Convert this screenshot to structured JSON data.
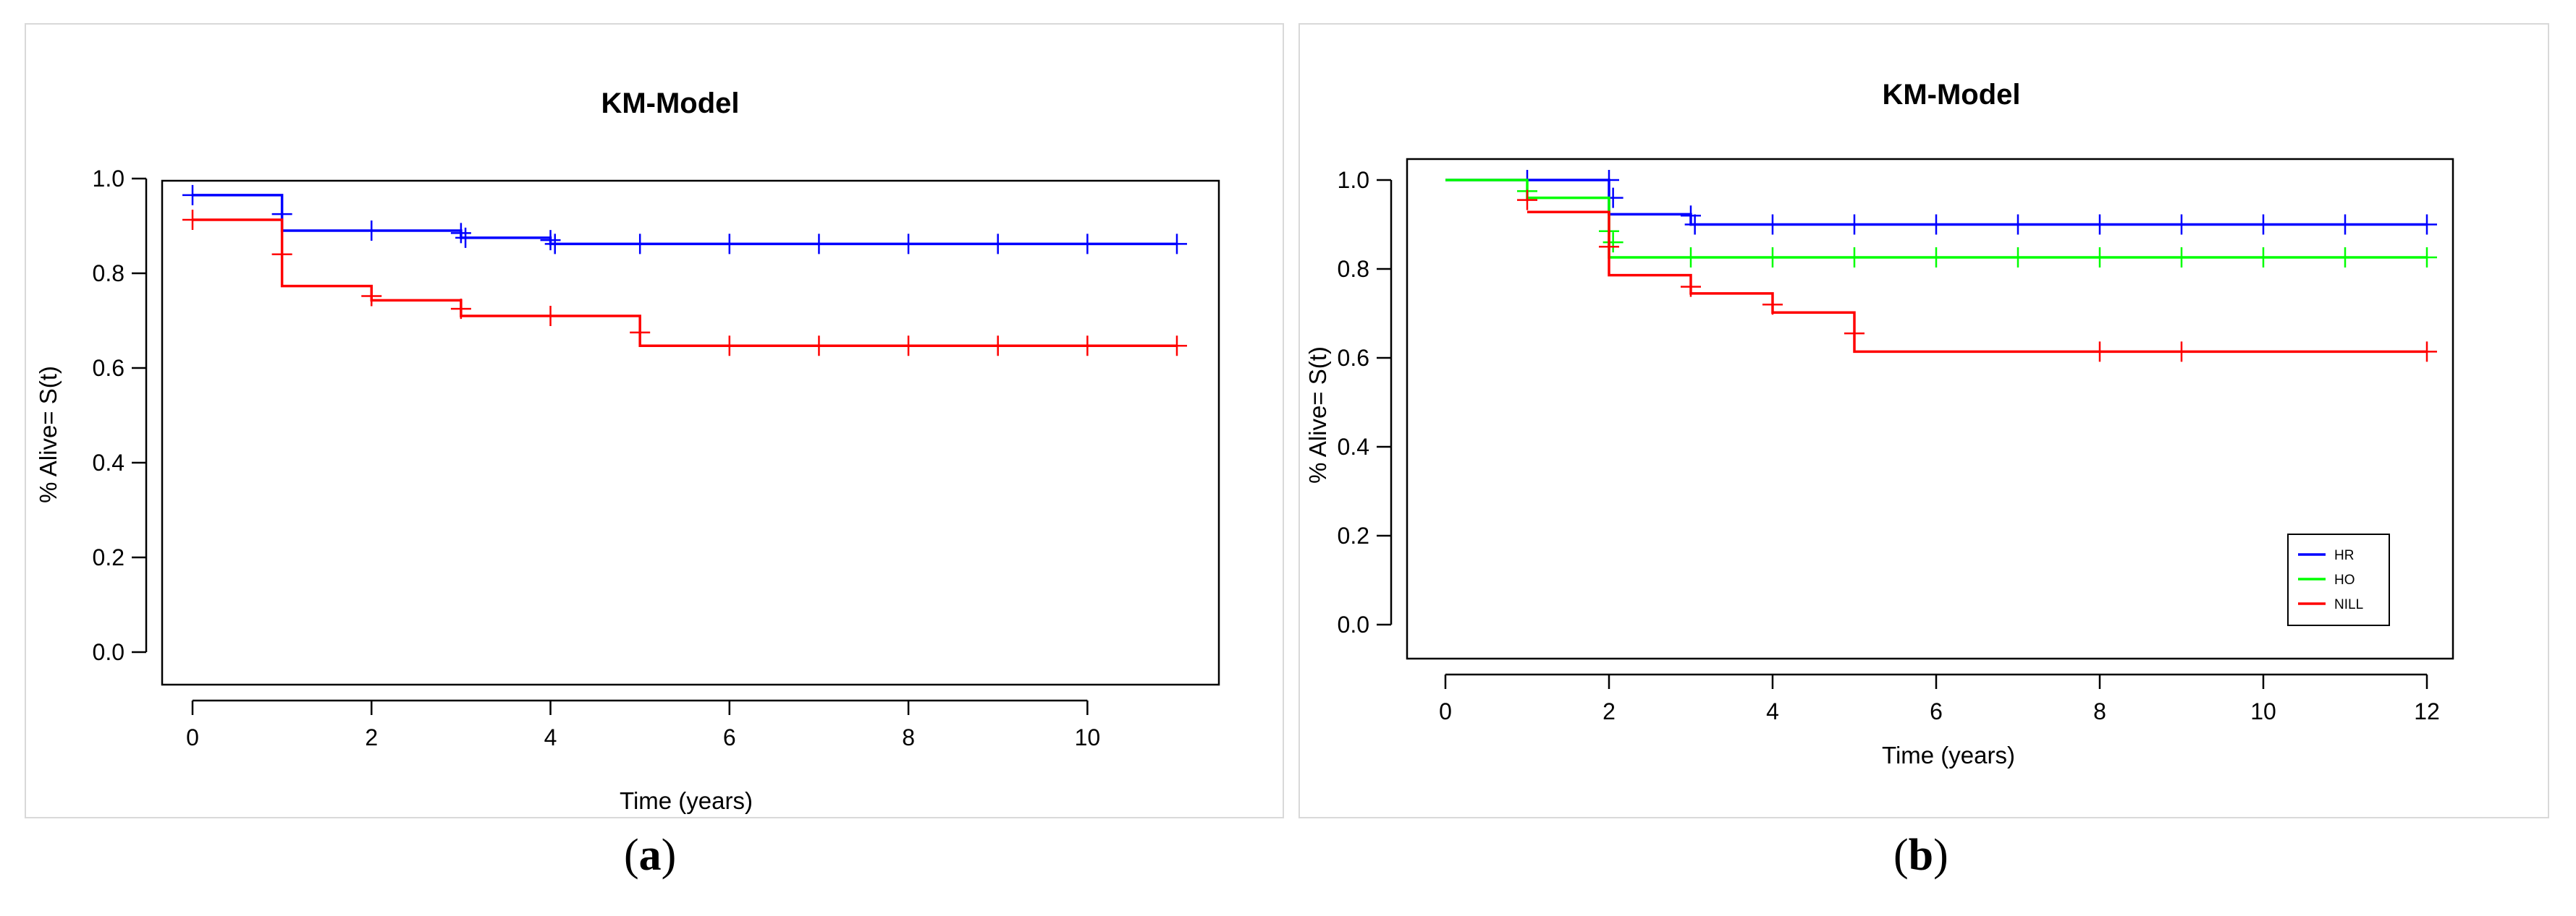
{
  "colors": {
    "HR": "#0000ff",
    "HO": "#00ff00",
    "NILL": "#ff0000",
    "axis": "#000000"
  },
  "subfigures": [
    {
      "label_open": "(",
      "label_letter": "a",
      "label_close": ")"
    },
    {
      "label_open": "(",
      "label_letter": "b",
      "label_close": ")"
    }
  ],
  "chart_data": [
    {
      "type": "line",
      "subtype": "kaplan-meier step",
      "title": "KM-Model",
      "xlabel": "Time (years)",
      "ylabel": "% Alive= S(t)",
      "xlim": [
        0,
        11
      ],
      "ylim": [
        0.0,
        1.0
      ],
      "xticks": [
        "0",
        "2",
        "4",
        "6",
        "8",
        "10"
      ],
      "yticks": [
        "0.0",
        "0.2",
        "0.4",
        "0.6",
        "0.8",
        "1.0"
      ],
      "legend": null,
      "series": [
        {
          "name": "blue",
          "color": "#0000ff",
          "steps": [
            [
              0,
              0.965
            ],
            [
              1,
              0.89
            ],
            [
              3,
              0.875
            ],
            [
              4,
              0.862
            ],
            [
              11,
              0.862
            ]
          ],
          "censor": [
            [
              0,
              0.965
            ],
            [
              1,
              0.925
            ],
            [
              2,
              0.89
            ],
            [
              3,
              0.885
            ],
            [
              3.05,
              0.875
            ],
            [
              4,
              0.87
            ],
            [
              4.05,
              0.862
            ],
            [
              5,
              0.862
            ],
            [
              6,
              0.862
            ],
            [
              7,
              0.862
            ],
            [
              8,
              0.862
            ],
            [
              9,
              0.862
            ],
            [
              10,
              0.862
            ],
            [
              11,
              0.862
            ]
          ]
        },
        {
          "name": "red",
          "color": "#ff0000",
          "steps": [
            [
              0,
              0.913
            ],
            [
              1,
              0.773
            ],
            [
              2,
              0.743
            ],
            [
              3,
              0.71
            ],
            [
              5,
              0.647
            ],
            [
              11,
              0.647
            ]
          ],
          "censor": [
            [
              0,
              0.913
            ],
            [
              1,
              0.84
            ],
            [
              2,
              0.752
            ],
            [
              3,
              0.725
            ],
            [
              4,
              0.71
            ],
            [
              5,
              0.675
            ],
            [
              6,
              0.647
            ],
            [
              7,
              0.647
            ],
            [
              8,
              0.647
            ],
            [
              9,
              0.647
            ],
            [
              10,
              0.647
            ],
            [
              11,
              0.647
            ]
          ]
        }
      ]
    },
    {
      "type": "line",
      "subtype": "kaplan-meier step",
      "title": "KM-Model",
      "xlabel": "Time (years)",
      "ylabel": "% Alive= S(t)",
      "xlim": [
        0,
        12
      ],
      "ylim": [
        0.0,
        1.0
      ],
      "xticks": [
        "0",
        "2",
        "4",
        "6",
        "8",
        "10",
        "12"
      ],
      "yticks": [
        "0.0",
        "0.2",
        "0.4",
        "0.6",
        "0.8",
        "1.0"
      ],
      "legend": {
        "position": "bottom-right",
        "entries": [
          "HR",
          "HO",
          "NILL"
        ]
      },
      "series": [
        {
          "name": "HR",
          "color": "#0000ff",
          "steps": [
            [
              0,
              1.0
            ],
            [
              2,
              0.923
            ],
            [
              3,
              0.9
            ],
            [
              12,
              0.9
            ]
          ],
          "censor": [
            [
              1,
              1.0
            ],
            [
              2,
              1.0
            ],
            [
              2.05,
              0.96
            ],
            [
              3,
              0.92
            ],
            [
              3.05,
              0.9
            ],
            [
              4,
              0.9
            ],
            [
              5,
              0.9
            ],
            [
              6,
              0.9
            ],
            [
              7,
              0.9
            ],
            [
              8,
              0.9
            ],
            [
              9,
              0.9
            ],
            [
              10,
              0.9
            ],
            [
              11,
              0.9
            ],
            [
              12,
              0.9
            ]
          ]
        },
        {
          "name": "HO",
          "color": "#00ff00",
          "steps": [
            [
              0,
              1.0
            ],
            [
              1,
              0.96
            ],
            [
              2,
              0.826
            ],
            [
              12,
              0.826
            ]
          ],
          "censor": [
            [
              1,
              0.975
            ],
            [
              2,
              0.885
            ],
            [
              2.05,
              0.86
            ],
            [
              3,
              0.826
            ],
            [
              4,
              0.826
            ],
            [
              5,
              0.826
            ],
            [
              6,
              0.826
            ],
            [
              7,
              0.826
            ],
            [
              8,
              0.826
            ],
            [
              9,
              0.826
            ],
            [
              10,
              0.826
            ],
            [
              11,
              0.826
            ],
            [
              12,
              0.826
            ]
          ]
        },
        {
          "name": "NILL",
          "color": "#ff0000",
          "steps": [
            [
              1,
              0.928
            ],
            [
              2,
              0.786
            ],
            [
              3,
              0.745
            ],
            [
              4,
              0.702
            ],
            [
              5,
              0.614
            ],
            [
              12,
              0.614
            ]
          ],
          "censor": [
            [
              1,
              0.955
            ],
            [
              2,
              0.85
            ],
            [
              3,
              0.76
            ],
            [
              4,
              0.72
            ],
            [
              5,
              0.655
            ],
            [
              8,
              0.614
            ],
            [
              9,
              0.614
            ],
            [
              12,
              0.614
            ]
          ]
        }
      ]
    }
  ]
}
